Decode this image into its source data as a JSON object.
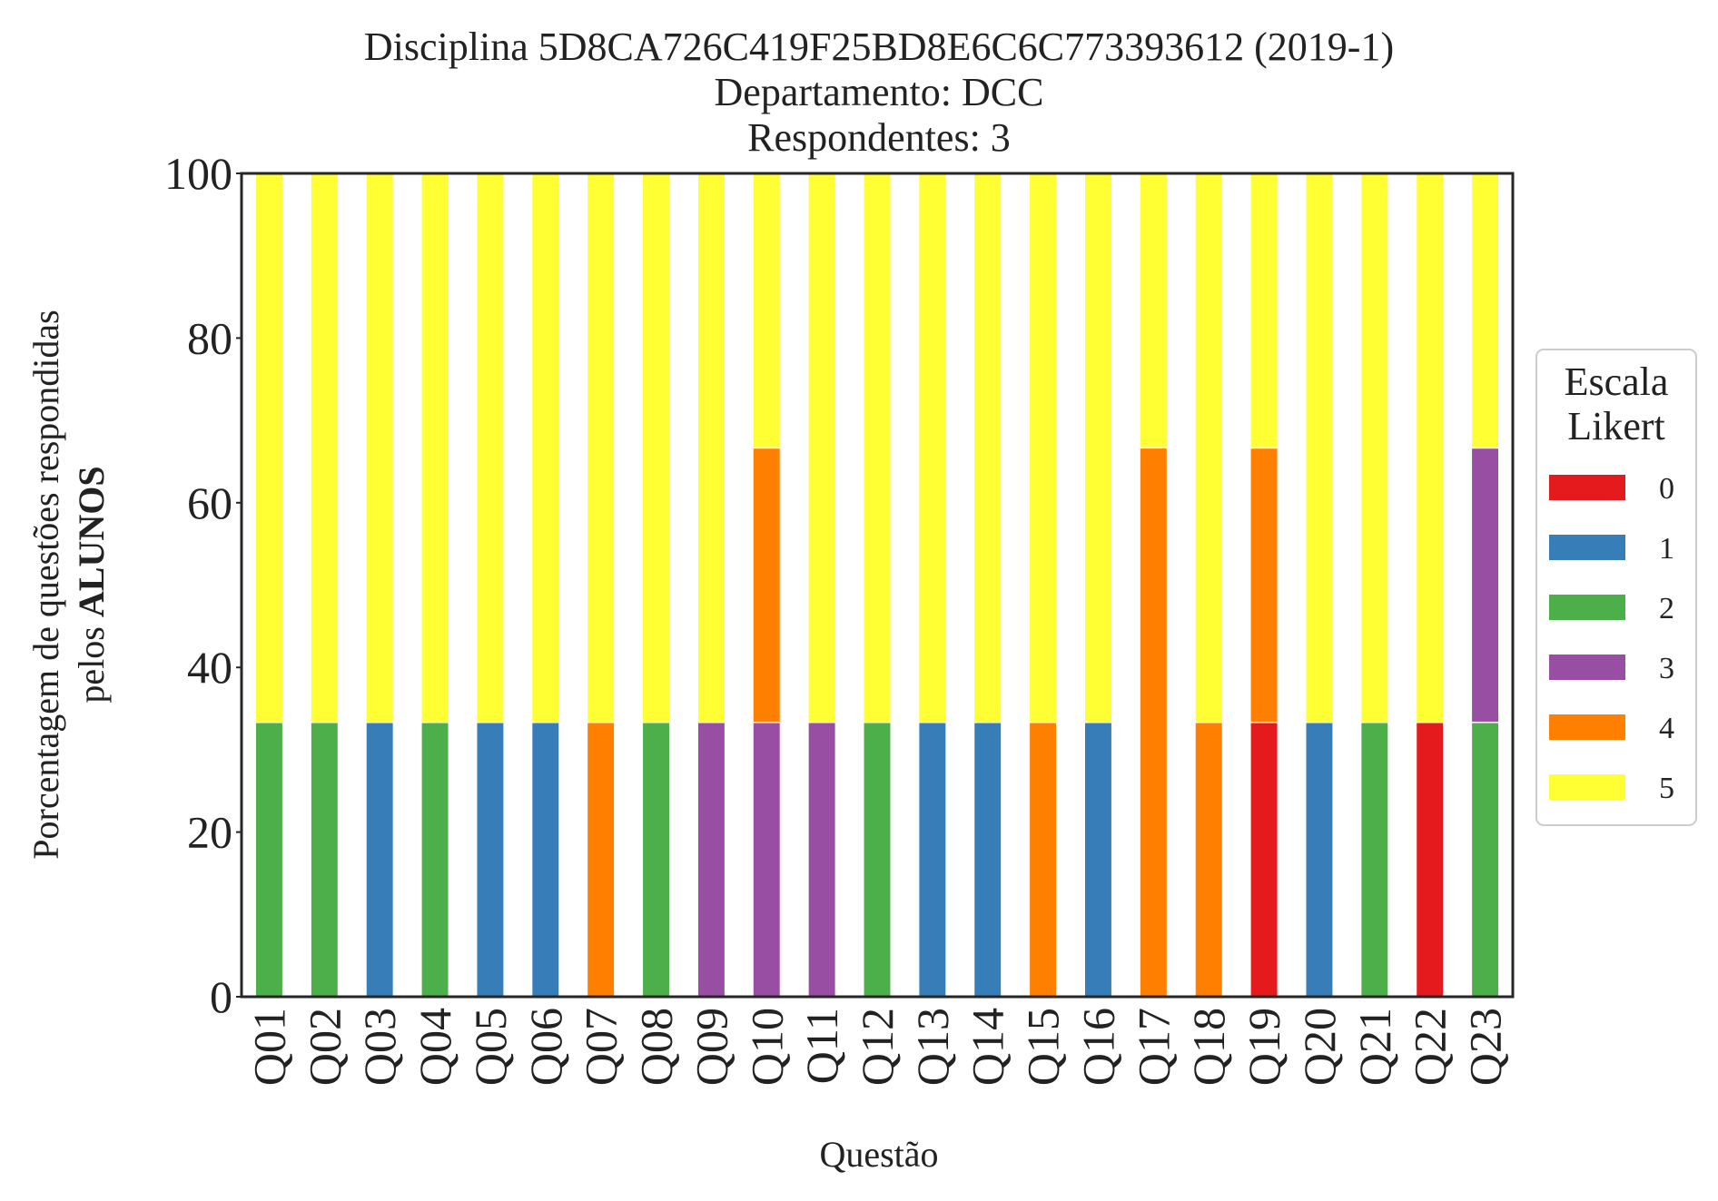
{
  "chart_data": {
    "type": "bar",
    "stacked": true,
    "title": [
      "Disciplina 5D8CA726C419F25BD8E6C6C773393612 (2019-1)",
      "Departamento: DCC",
      "Respondentes: 3"
    ],
    "xlabel": "Questão",
    "ylabel": "Porcentagem de questões respondidas",
    "ylabel_line2_prefix": "pelos ",
    "ylabel_line2_bold": "ALUNOS",
    "ylim": [
      0,
      100
    ],
    "yticks": [
      "0",
      "20",
      "40",
      "60",
      "80",
      "100"
    ],
    "grid": false,
    "legend": {
      "title": [
        "Escala",
        "Likert"
      ],
      "placement": "right, outside plot, vertically centered"
    },
    "categories": [
      "Q01",
      "Q02",
      "Q03",
      "Q04",
      "Q05",
      "Q06",
      "Q07",
      "Q08",
      "Q09",
      "Q10",
      "Q11",
      "Q12",
      "Q13",
      "Q14",
      "Q15",
      "Q16",
      "Q17",
      "Q18",
      "Q19",
      "Q20",
      "Q21",
      "Q22",
      "Q23"
    ],
    "series": [
      {
        "name": "0",
        "color": "#e41a1c",
        "values": [
          0,
          0,
          0,
          0,
          0,
          0,
          0,
          0,
          0,
          0,
          0,
          0,
          0,
          0,
          0,
          0,
          0,
          0,
          33.33,
          0,
          0,
          33.33,
          0
        ]
      },
      {
        "name": "1",
        "color": "#377eb8",
        "values": [
          0,
          0,
          33.33,
          0,
          33.33,
          33.33,
          0,
          0,
          0,
          0,
          0,
          0,
          33.33,
          33.33,
          0,
          33.33,
          0,
          0,
          0,
          33.33,
          0,
          0,
          0
        ]
      },
      {
        "name": "2",
        "color": "#4daf4a",
        "values": [
          33.33,
          33.33,
          0,
          33.33,
          0,
          0,
          0,
          33.33,
          0,
          0,
          0,
          33.33,
          0,
          0,
          0,
          0,
          0,
          0,
          0,
          0,
          33.33,
          0,
          33.33
        ]
      },
      {
        "name": "3",
        "color": "#984ea3",
        "values": [
          0,
          0,
          0,
          0,
          0,
          0,
          0,
          0,
          33.33,
          33.33,
          33.33,
          0,
          0,
          0,
          0,
          0,
          0,
          0,
          0,
          0,
          0,
          0,
          33.33
        ]
      },
      {
        "name": "4",
        "color": "#ff7f00",
        "values": [
          0,
          0,
          0,
          0,
          0,
          0,
          33.33,
          0,
          0,
          33.33,
          0,
          0,
          0,
          0,
          33.33,
          0,
          66.67,
          33.33,
          33.33,
          0,
          0,
          0,
          0
        ]
      },
      {
        "name": "5",
        "color": "#ffff33",
        "values": [
          66.67,
          66.67,
          66.67,
          66.67,
          66.67,
          66.67,
          66.67,
          66.67,
          66.67,
          33.33,
          66.67,
          66.67,
          66.67,
          66.67,
          66.67,
          66.67,
          33.33,
          66.67,
          33.33,
          66.67,
          66.67,
          66.67,
          33.33
        ]
      }
    ]
  }
}
